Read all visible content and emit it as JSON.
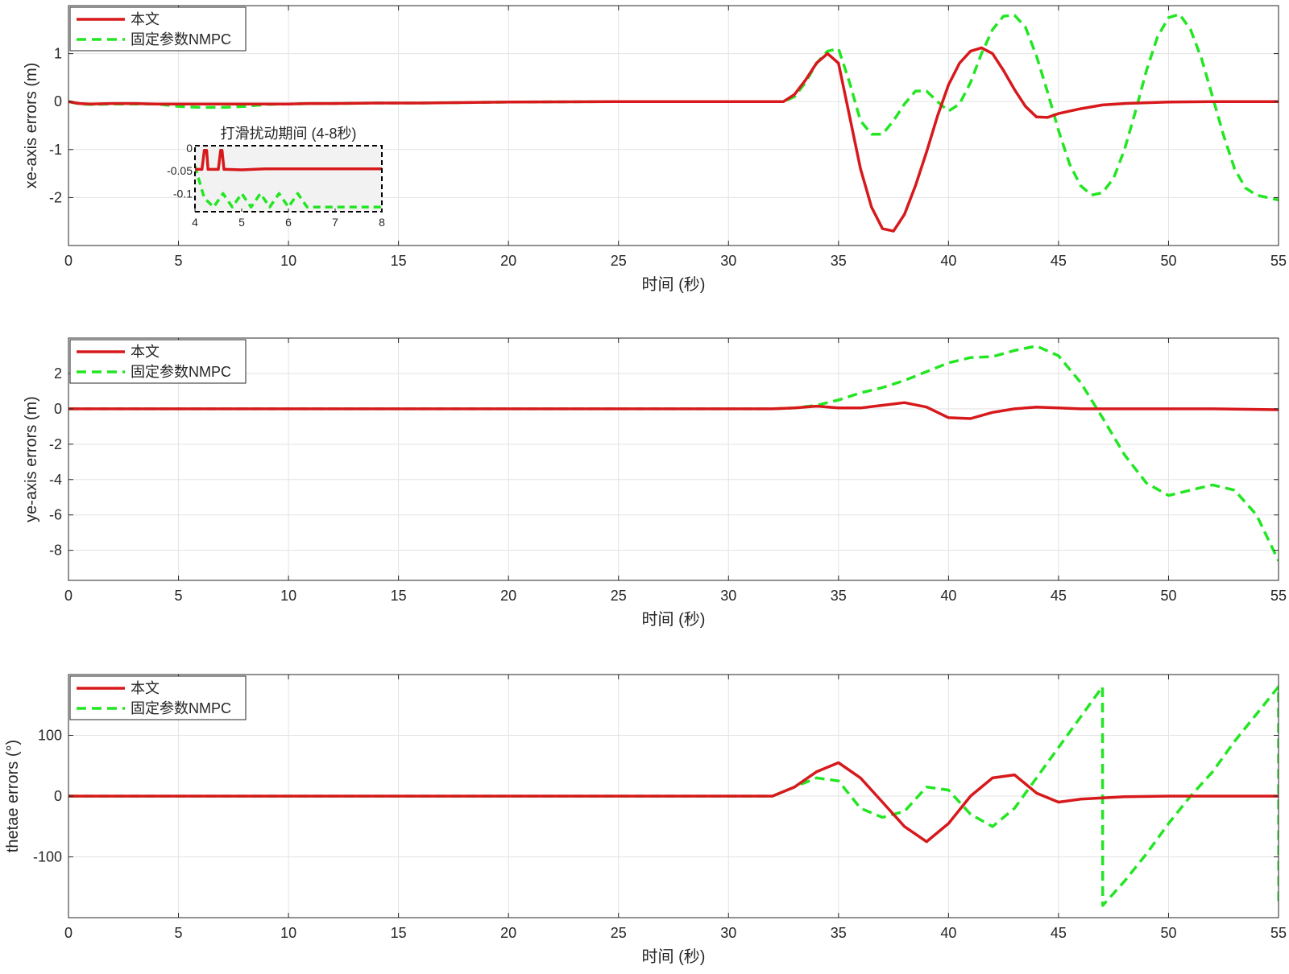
{
  "colors": {
    "proposed": "#d7191c",
    "fixed_nmpc": "#22e622",
    "grid": "#e3e3e3",
    "axis": "#262626",
    "inset_bg": "#f2f2f2"
  },
  "legend": {
    "proposed_label": "本文",
    "fixed_label": "固定参数NMPC"
  },
  "chart_data": [
    {
      "type": "line",
      "xlabel": "时间 (秒)",
      "ylabel": "xe-axis errors (m)",
      "xlim": [
        0,
        55
      ],
      "ylim": [
        -3,
        2
      ],
      "xticks": [
        0,
        5,
        10,
        15,
        20,
        25,
        30,
        35,
        40,
        45,
        50,
        55
      ],
      "yticks": [
        -2,
        -1,
        0,
        1
      ],
      "grid": true,
      "legend_position": "top-left",
      "series": [
        {
          "name": "本文",
          "style": "solid",
          "x": [
            0,
            0.5,
            1,
            2,
            3,
            4,
            5,
            6,
            7,
            8,
            9,
            10,
            11,
            12,
            14,
            16,
            18,
            20,
            25,
            30,
            32,
            32.5,
            33,
            33.5,
            34,
            34.5,
            35,
            35.5,
            36,
            36.5,
            37,
            37.5,
            38,
            38.5,
            39,
            39.5,
            40,
            40.5,
            41,
            41.5,
            42,
            42.5,
            43,
            43.5,
            44,
            44.5,
            45,
            46,
            47,
            48,
            50,
            52,
            55
          ],
          "y": [
            0,
            -0.04,
            -0.05,
            -0.04,
            -0.04,
            -0.05,
            -0.05,
            -0.05,
            -0.05,
            -0.05,
            -0.05,
            -0.05,
            -0.04,
            -0.04,
            -0.03,
            -0.03,
            -0.02,
            -0.01,
            0,
            0,
            0,
            0,
            0.15,
            0.45,
            0.8,
            1.0,
            0.8,
            -0.3,
            -1.4,
            -2.2,
            -2.65,
            -2.7,
            -2.35,
            -1.75,
            -1.05,
            -0.3,
            0.35,
            0.8,
            1.05,
            1.12,
            1.0,
            0.65,
            0.25,
            -0.1,
            -0.32,
            -0.33,
            -0.25,
            -0.15,
            -0.07,
            -0.04,
            -0.01,
            0,
            0
          ]
        },
        {
          "name": "固定参数NMPC",
          "style": "dashed",
          "x": [
            0,
            0.5,
            1,
            2,
            3,
            4,
            5,
            6,
            7,
            8,
            9,
            10,
            11,
            12,
            14,
            16,
            18,
            20,
            25,
            30,
            32,
            32.5,
            33,
            33.5,
            34,
            34.5,
            35,
            35.5,
            36,
            36.5,
            37,
            37.5,
            38,
            38.5,
            39,
            39.5,
            40,
            40.5,
            41,
            41.5,
            42,
            42.5,
            43,
            43.5,
            44,
            44.5,
            45,
            45.5,
            46,
            46.5,
            47,
            47.5,
            48,
            48.5,
            49,
            49.5,
            50,
            50.5,
            51,
            51.5,
            52,
            52.5,
            53,
            53.5,
            54,
            54.5,
            55
          ],
          "y": [
            0,
            -0.05,
            -0.06,
            -0.05,
            -0.05,
            -0.05,
            -0.1,
            -0.12,
            -0.12,
            -0.1,
            -0.06,
            -0.05,
            -0.04,
            -0.04,
            -0.03,
            -0.03,
            -0.02,
            -0.01,
            0,
            0,
            0,
            0,
            0.1,
            0.4,
            0.8,
            1.05,
            1.1,
            0.4,
            -0.4,
            -0.68,
            -0.68,
            -0.4,
            -0.05,
            0.22,
            0.22,
            0.0,
            -0.2,
            -0.05,
            0.4,
            1.0,
            1.5,
            1.78,
            1.8,
            1.55,
            0.95,
            0.2,
            -0.6,
            -1.3,
            -1.75,
            -1.95,
            -1.9,
            -1.6,
            -1.0,
            -0.2,
            0.65,
            1.35,
            1.75,
            1.82,
            1.5,
            0.9,
            0.1,
            -0.7,
            -1.4,
            -1.8,
            -1.95,
            -2.0,
            -2.05
          ]
        }
      ],
      "inset": {
        "title": "打滑扰动期间 (4-8秒)",
        "xlim": [
          4,
          8
        ],
        "ylim": [
          -0.14,
          0.005
        ],
        "xticks": [
          4,
          5,
          6,
          7,
          8
        ],
        "yticks": [
          0,
          -0.05,
          -0.1
        ],
        "ytick_labels": [
          "0",
          "-0.05",
          "-0.1"
        ],
        "series": [
          {
            "name": "本文",
            "style": "solid",
            "x": [
              4,
              4.15,
              4.2,
              4.25,
              4.28,
              4.32,
              4.38,
              4.42,
              4.45,
              4.5,
              4.55,
              4.58,
              4.62,
              4.66,
              5,
              5.5,
              6,
              6.5,
              7,
              7.5,
              8
            ],
            "y": [
              -0.047,
              -0.047,
              -0.005,
              -0.005,
              -0.047,
              -0.047,
              -0.047,
              -0.047,
              -0.047,
              -0.047,
              -0.005,
              -0.005,
              -0.047,
              -0.047,
              -0.048,
              -0.046,
              -0.046,
              -0.046,
              -0.046,
              -0.046,
              -0.046
            ]
          },
          {
            "name": "固定参数NMPC",
            "style": "dashed",
            "x": [
              4,
              4.2,
              4.4,
              4.6,
              4.8,
              5.0,
              5.2,
              5.4,
              5.6,
              5.8,
              6.0,
              6.2,
              6.4,
              7.0,
              7.5,
              8
            ],
            "y": [
              -0.04,
              -0.11,
              -0.13,
              -0.1,
              -0.13,
              -0.1,
              -0.13,
              -0.1,
              -0.13,
              -0.1,
              -0.13,
              -0.1,
              -0.13,
              -0.13,
              -0.13,
              -0.13
            ]
          }
        ]
      }
    },
    {
      "type": "line",
      "xlabel": "时间 (秒)",
      "ylabel": "ye-axis errors (m)",
      "xlim": [
        0,
        55
      ],
      "ylim": [
        -9.7,
        4
      ],
      "xticks": [
        0,
        5,
        10,
        15,
        20,
        25,
        30,
        35,
        40,
        45,
        50,
        55
      ],
      "yticks": [
        -8,
        -6,
        -4,
        -2,
        0,
        2
      ],
      "grid": true,
      "legend_position": "top-left",
      "series": [
        {
          "name": "本文",
          "style": "solid",
          "x": [
            0,
            5,
            10,
            15,
            20,
            25,
            30,
            32,
            33,
            34,
            35,
            36,
            37,
            38,
            39,
            40,
            41,
            42,
            43,
            44,
            45,
            46,
            48,
            50,
            52,
            55
          ],
          "y": [
            0,
            0,
            0,
            0,
            0,
            0,
            0,
            0,
            0.05,
            0.15,
            0.05,
            0.05,
            0.2,
            0.35,
            0.1,
            -0.5,
            -0.55,
            -0.2,
            0,
            0.1,
            0.05,
            0,
            0,
            0,
            0,
            -0.05
          ]
        },
        {
          "name": "固定参数NMPC",
          "style": "dashed",
          "x": [
            0,
            5,
            10,
            15,
            20,
            25,
            30,
            32,
            33,
            34,
            35,
            36,
            37,
            38,
            39,
            40,
            41,
            42,
            43,
            44,
            45,
            46,
            47,
            48,
            49,
            50,
            51,
            52,
            53,
            54,
            55
          ],
          "y": [
            0,
            0,
            0,
            0,
            0,
            0,
            0,
            0,
            0.05,
            0.2,
            0.5,
            0.9,
            1.2,
            1.6,
            2.1,
            2.6,
            2.9,
            2.95,
            3.3,
            3.55,
            3.0,
            1.5,
            -0.5,
            -2.6,
            -4.2,
            -4.9,
            -4.6,
            -4.3,
            -4.6,
            -6.0,
            -8.6
          ]
        }
      ]
    },
    {
      "type": "line",
      "xlabel": "时间 (秒)",
      "ylabel": "thetae errors (°)",
      "xlim": [
        0,
        55
      ],
      "ylim": [
        -200,
        200
      ],
      "xticks": [
        0,
        5,
        10,
        15,
        20,
        25,
        30,
        35,
        40,
        45,
        50,
        55
      ],
      "yticks": [
        -100,
        0,
        100
      ],
      "grid": true,
      "legend_position": "top-left",
      "series": [
        {
          "name": "本文",
          "style": "solid",
          "x": [
            0,
            5,
            10,
            15,
            20,
            25,
            30,
            32,
            33,
            34,
            35,
            36,
            37,
            38,
            39,
            40,
            41,
            42,
            43,
            44,
            45,
            46,
            47,
            48,
            50,
            55
          ],
          "y": [
            0,
            0,
            0,
            0,
            0,
            0,
            0,
            0,
            15,
            40,
            55,
            30,
            -10,
            -50,
            -75,
            -45,
            0,
            30,
            35,
            5,
            -10,
            -5,
            -3,
            -1,
            0,
            0
          ]
        },
        {
          "name": "固定参数NMPC",
          "style": "dashed",
          "x": [
            0,
            5,
            10,
            15,
            20,
            25,
            30,
            32,
            33,
            34,
            35,
            36,
            37,
            38,
            39,
            40,
            41,
            42,
            43,
            44,
            45,
            46,
            47,
            47.01,
            48,
            49,
            50,
            51,
            52,
            53,
            54,
            55,
            55.01
          ],
          "y": [
            0,
            0,
            0,
            0,
            0,
            0,
            0,
            0,
            15,
            30,
            25,
            -20,
            -35,
            -25,
            15,
            10,
            -30,
            -50,
            -20,
            30,
            80,
            130,
            180,
            -180,
            -140,
            -95,
            -45,
            0,
            40,
            90,
            135,
            180,
            -180
          ]
        }
      ]
    }
  ]
}
